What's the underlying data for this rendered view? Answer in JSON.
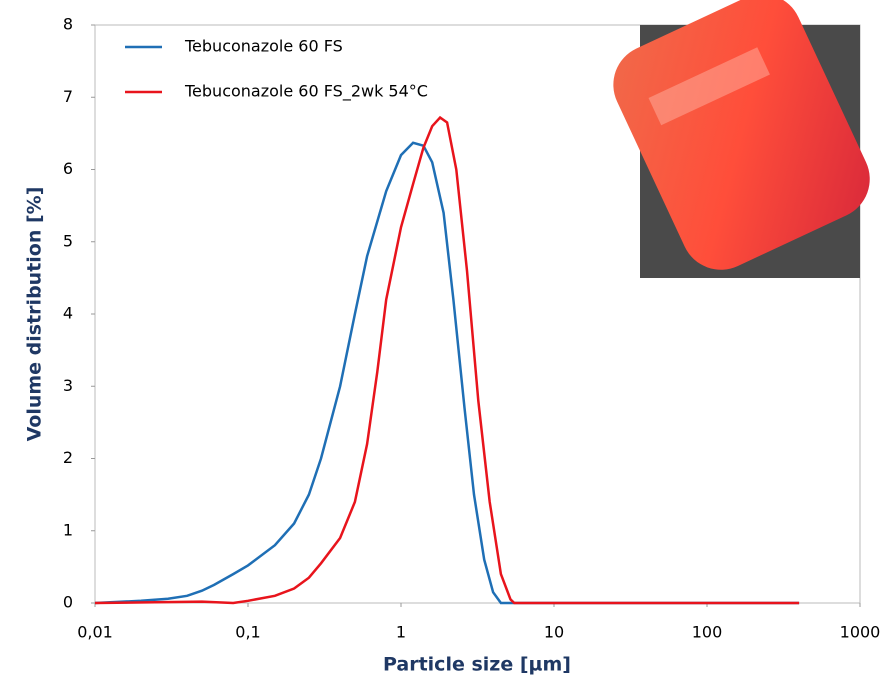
{
  "chart_data": {
    "type": "line",
    "xlabel": "Particle size [µm]",
    "ylabel": "Volume distribution [%]",
    "xscale": "log",
    "xlim": [
      0.01,
      1000
    ],
    "ylim": [
      0,
      8
    ],
    "xticks": [
      {
        "value": 0.01,
        "label": "0,01"
      },
      {
        "value": 0.1,
        "label": "0,1"
      },
      1,
      10,
      100,
      1000
    ],
    "yticks": [
      0,
      1,
      2,
      3,
      4,
      5,
      6,
      7,
      8
    ],
    "legend": "top-left",
    "series": [
      {
        "name": "Tebuconazole 60 FS",
        "color": "#1f6fb5",
        "x": [
          0.01,
          0.02,
          0.03,
          0.04,
          0.05,
          0.06,
          0.08,
          0.1,
          0.15,
          0.2,
          0.25,
          0.3,
          0.4,
          0.5,
          0.6,
          0.8,
          1.0,
          1.2,
          1.4,
          1.6,
          1.9,
          2.2,
          2.6,
          3.0,
          3.5,
          4.0,
          4.5,
          10,
          100,
          400
        ],
        "values": [
          0,
          0.03,
          0.06,
          0.1,
          0.17,
          0.25,
          0.4,
          0.52,
          0.8,
          1.1,
          1.5,
          2.0,
          3.0,
          4.0,
          4.8,
          5.7,
          6.2,
          6.37,
          6.33,
          6.1,
          5.4,
          4.2,
          2.7,
          1.5,
          0.6,
          0.15,
          0,
          0,
          0,
          0
        ]
      },
      {
        "name": "Tebuconazole 60 FS_2wk 54°C",
        "color": "#e8141c",
        "x": [
          0.01,
          0.05,
          0.08,
          0.1,
          0.15,
          0.2,
          0.25,
          0.3,
          0.4,
          0.5,
          0.6,
          0.7,
          0.8,
          1.0,
          1.2,
          1.4,
          1.6,
          1.8,
          2.0,
          2.3,
          2.7,
          3.2,
          3.8,
          4.5,
          5.2,
          5.5,
          10,
          100,
          400
        ],
        "values": [
          0,
          0.02,
          0,
          0.03,
          0.1,
          0.2,
          0.35,
          0.55,
          0.9,
          1.4,
          2.2,
          3.2,
          4.2,
          5.2,
          5.8,
          6.3,
          6.6,
          6.72,
          6.65,
          6.0,
          4.6,
          2.8,
          1.4,
          0.4,
          0.05,
          0,
          0,
          0,
          0
        ]
      }
    ]
  }
}
